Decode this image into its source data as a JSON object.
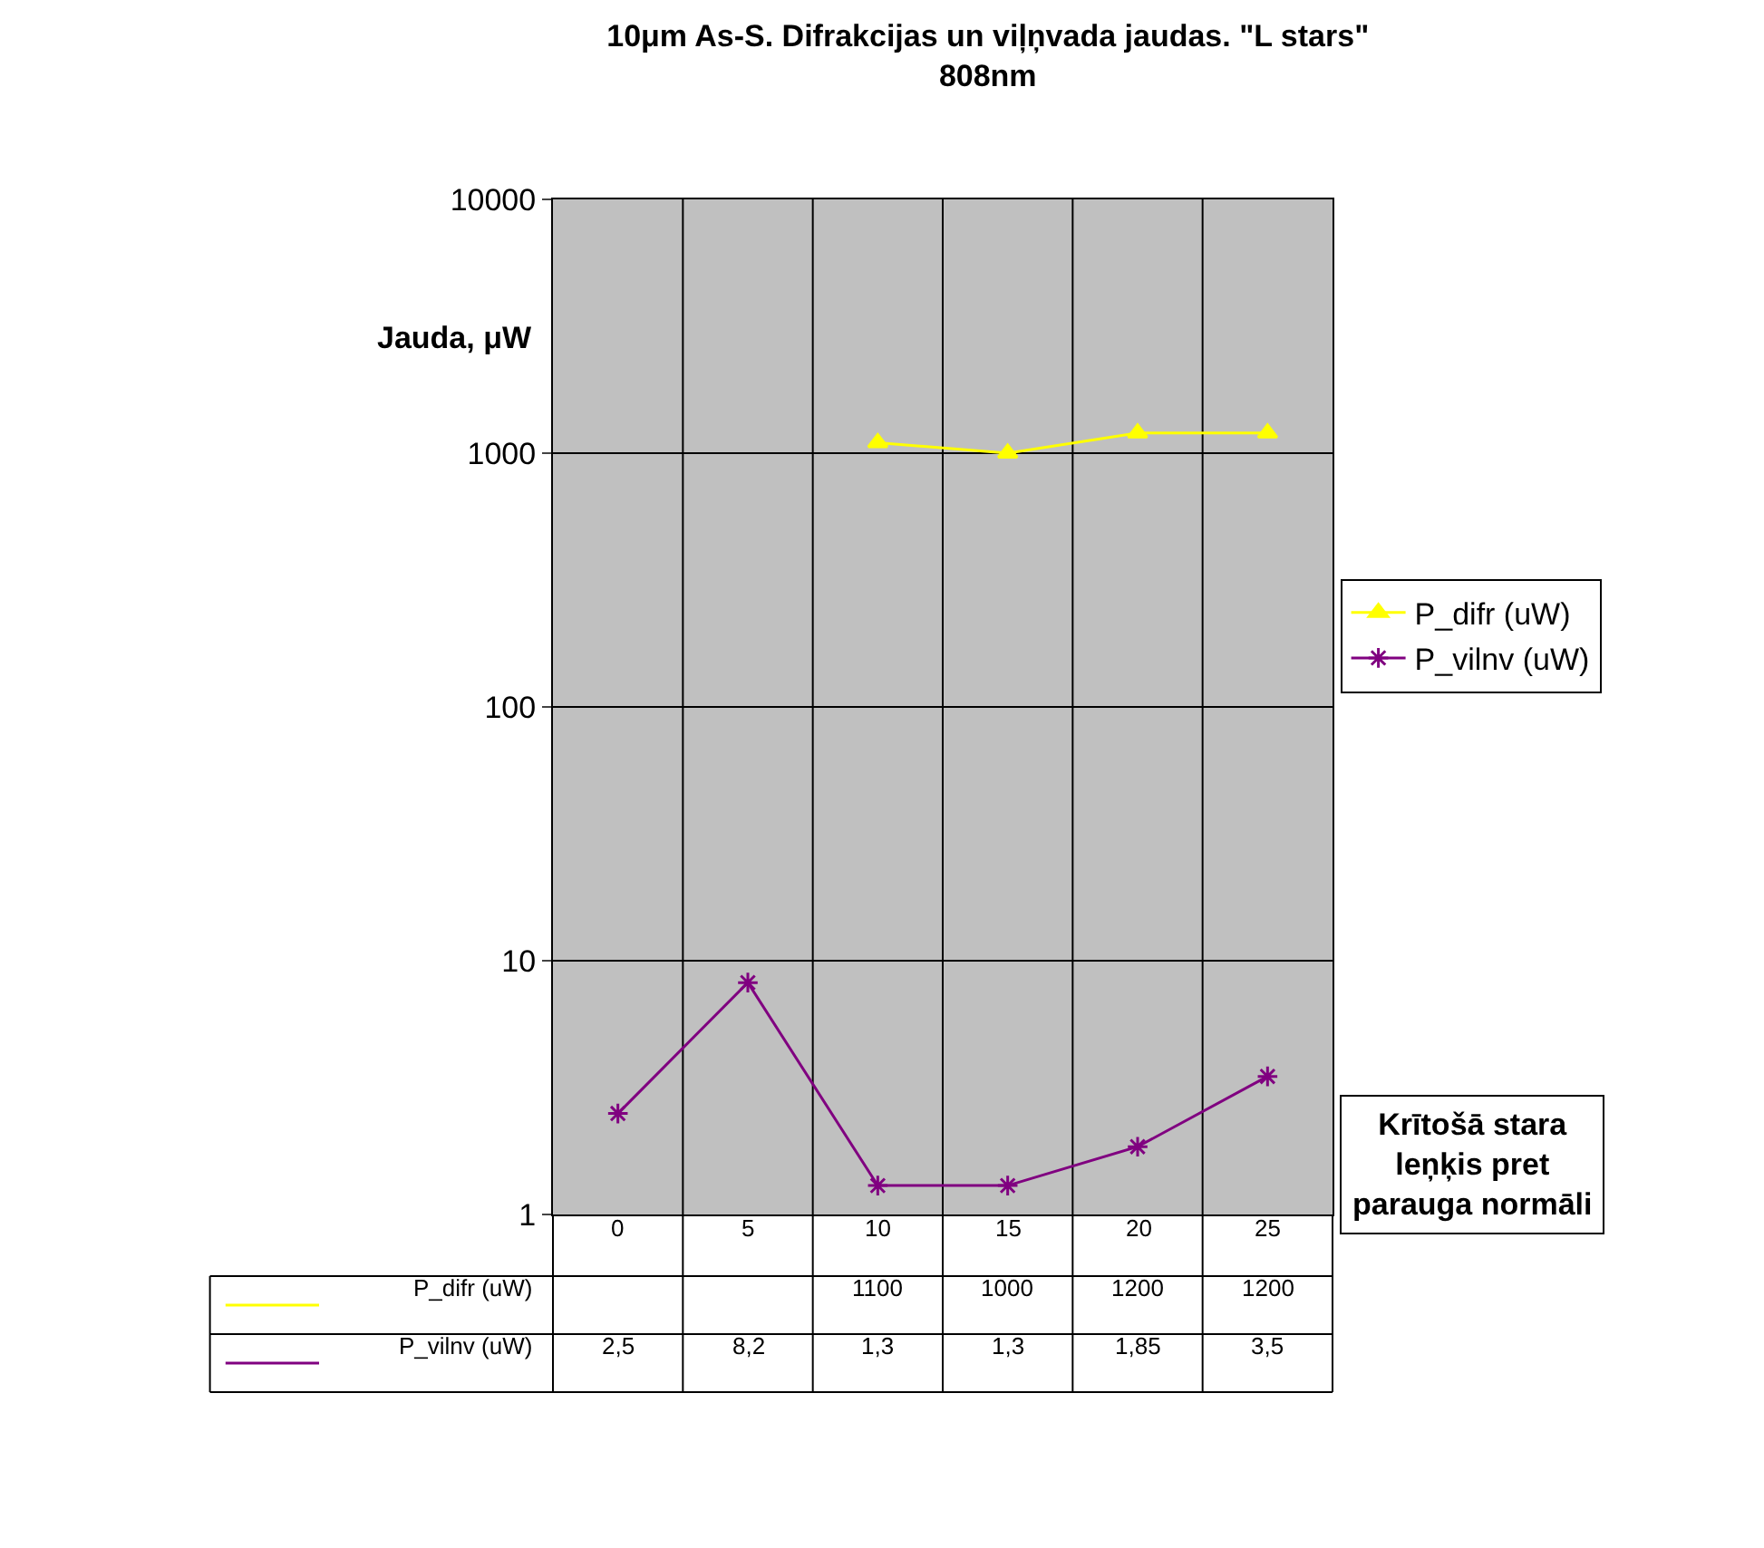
{
  "chart_data": {
    "type": "line",
    "title": "10μm As-S. Difrakcijas un viļņvada jaudas. \"L stars\"\n808nm",
    "ylabel": "Jauda, μW",
    "xlabel": "Krītošā stara\nleņķis pret\nparauga normāli",
    "categories": [
      "0",
      "5",
      "10",
      "15",
      "20",
      "25"
    ],
    "series": [
      {
        "name": "P_difr (uW)",
        "color": "#ffff00",
        "marker": "triangle",
        "values": [
          null,
          null,
          1100,
          1000,
          1200,
          1200
        ],
        "value_labels": [
          null,
          null,
          "1100",
          "1000",
          "1200",
          "1200"
        ]
      },
      {
        "name": "P_vilnv (uW)",
        "color": "#800080",
        "marker": "cross",
        "values": [
          2.5,
          8.2,
          1.3,
          1.3,
          1.85,
          3.5
        ],
        "value_labels": [
          "2,5",
          "8,2",
          "1,3",
          "1,3",
          "1,85",
          "3,5"
        ]
      }
    ],
    "log": true,
    "ylim": [
      1,
      10000
    ],
    "yticks": [
      1,
      10,
      100,
      1000,
      10000
    ],
    "grid": true,
    "legend": "right"
  }
}
